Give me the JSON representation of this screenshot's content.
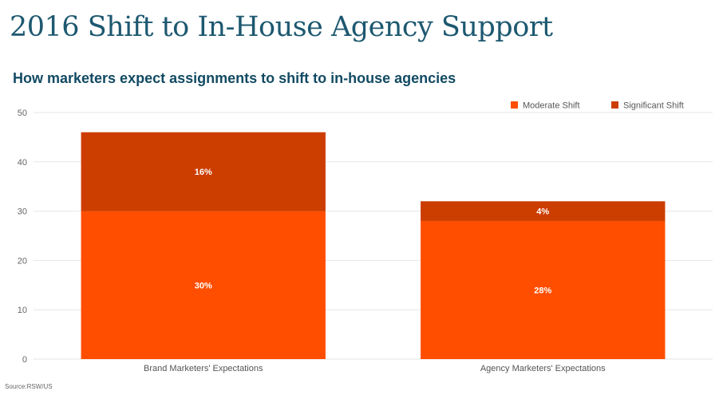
{
  "title": "2016 Shift to In-House Agency Support",
  "subtitle": "How marketers expect assignments to shift to in-house agencies",
  "source": "Source:RSW/US",
  "chart_data": {
    "type": "bar",
    "stacked": true,
    "categories": [
      "Brand Marketers' Expectations",
      "Agency Marketers' Expectations"
    ],
    "series": [
      {
        "name": "Moderate Shift",
        "values": [
          30,
          28
        ],
        "labels": [
          "30%",
          "28%"
        ],
        "color": "#ff4e00"
      },
      {
        "name": "Significant Shift",
        "values": [
          16,
          4
        ],
        "labels": [
          "16%",
          "4%"
        ],
        "color": "#cc3d00"
      }
    ],
    "ylim": [
      0,
      50
    ],
    "yticks": [
      0,
      10,
      20,
      30,
      40,
      50
    ],
    "grid": true,
    "legend_position": "top-right",
    "xlabel": "",
    "ylabel": ""
  }
}
